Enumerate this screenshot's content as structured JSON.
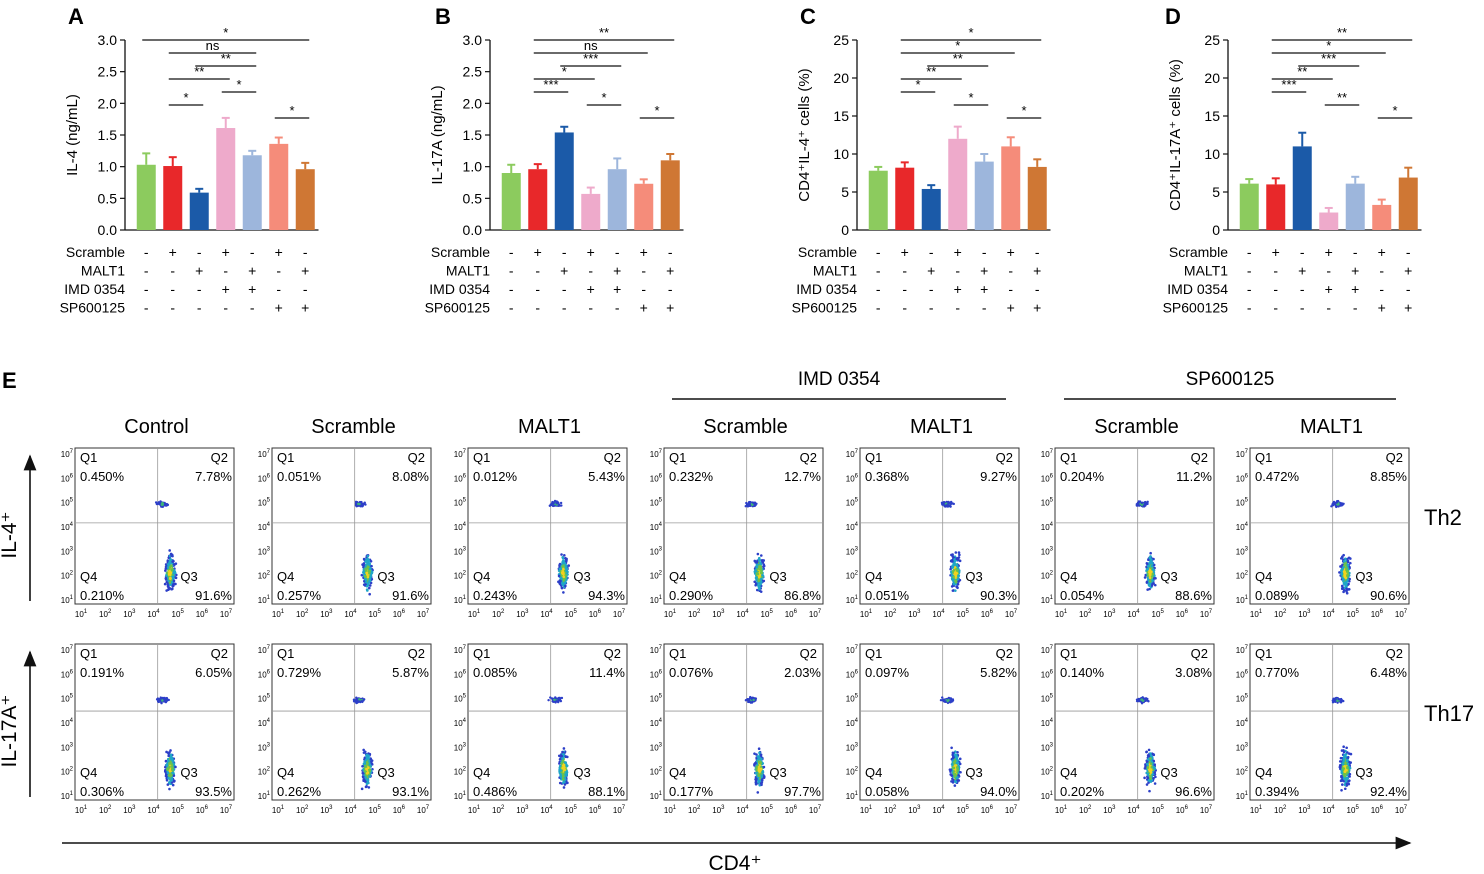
{
  "panel_labels": {
    "a": "A",
    "b": "B",
    "c": "C",
    "d": "D",
    "e": "E"
  },
  "colors": [
    "#8ccb5e",
    "#e8282a",
    "#1b5aa8",
    "#eeaacb",
    "#9db6dc",
    "#f58c7a",
    "#cf7734"
  ],
  "treatment_rows": [
    {
      "label": "Scramble",
      "signs": [
        "-",
        "+",
        "-",
        "+",
        "-",
        "+",
        "-"
      ]
    },
    {
      "label": "MALT1",
      "signs": [
        "-",
        "-",
        "+",
        "-",
        "+",
        "-",
        "+"
      ]
    },
    {
      "label": "IMD 0354",
      "signs": [
        "-",
        "-",
        "-",
        "+",
        "+",
        "-",
        "-"
      ]
    },
    {
      "label": "SP600125",
      "signs": [
        "-",
        "-",
        "-",
        "-",
        "-",
        "+",
        "+"
      ]
    }
  ],
  "chart_data": [
    {
      "type": "bar",
      "panel": "A",
      "ylabel": "IL-4 (ng/mL)",
      "ylim": [
        0,
        3.0
      ],
      "ticks": [
        "0.0",
        "0.5",
        "1.0",
        "1.5",
        "2.0",
        "2.5",
        "3.0"
      ],
      "values": [
        1.03,
        1.01,
        0.59,
        1.61,
        1.18,
        1.36,
        0.96
      ],
      "errors": [
        0.18,
        0.14,
        0.06,
        0.16,
        0.07,
        0.1,
        0.1
      ],
      "sig": [
        {
          "a": 0,
          "b": 6,
          "label": "*",
          "level": 0
        },
        {
          "a": 1,
          "b": 4,
          "label": "ns",
          "level": 1
        },
        {
          "a": 2,
          "b": 4,
          "label": "**",
          "level": 2
        },
        {
          "a": 1,
          "b": 3,
          "label": "**",
          "level": 3
        },
        {
          "a": 3,
          "b": 4,
          "label": "*",
          "level": 4
        },
        {
          "a": 1,
          "b": 2,
          "label": "*",
          "level": 5
        },
        {
          "a": 5,
          "b": 6,
          "label": "*",
          "level": 6
        }
      ]
    },
    {
      "type": "bar",
      "panel": "B",
      "ylabel": "IL-17A (ng/mL)",
      "ylim": [
        0,
        3.0
      ],
      "ticks": [
        "0.0",
        "0.5",
        "1.0",
        "1.5",
        "2.0",
        "2.5",
        "3.0"
      ],
      "values": [
        0.9,
        0.96,
        1.54,
        0.57,
        0.96,
        0.73,
        1.1
      ],
      "errors": [
        0.13,
        0.08,
        0.09,
        0.1,
        0.17,
        0.07,
        0.1
      ],
      "sig": [
        {
          "a": 1,
          "b": 6,
          "label": "**",
          "level": 0
        },
        {
          "a": 1,
          "b": 5,
          "label": "ns",
          "level": 1
        },
        {
          "a": 2,
          "b": 4,
          "label": "***",
          "level": 2
        },
        {
          "a": 1,
          "b": 3,
          "label": "*",
          "level": 3
        },
        {
          "a": 1,
          "b": 2,
          "label": "***",
          "level": 4
        },
        {
          "a": 3,
          "b": 4,
          "label": "*",
          "level": 5
        },
        {
          "a": 5,
          "b": 6,
          "label": "*",
          "level": 6
        }
      ]
    },
    {
      "type": "bar",
      "panel": "C",
      "ylabel": "CD4⁺IL-4⁺ cells  (%)",
      "ylim": [
        0,
        25
      ],
      "ticks": [
        "0",
        "5",
        "10",
        "15",
        "20",
        "25"
      ],
      "values": [
        7.8,
        8.2,
        5.4,
        12.0,
        9.0,
        11.0,
        8.3
      ],
      "errors": [
        0.5,
        0.7,
        0.5,
        1.6,
        1.0,
        1.2,
        1.0
      ],
      "sig": [
        {
          "a": 1,
          "b": 6,
          "label": "*",
          "level": 0
        },
        {
          "a": 1,
          "b": 5,
          "label": "*",
          "level": 1
        },
        {
          "a": 2,
          "b": 4,
          "label": "**",
          "level": 2
        },
        {
          "a": 1,
          "b": 3,
          "label": "**",
          "level": 3
        },
        {
          "a": 1,
          "b": 2,
          "label": "*",
          "level": 4
        },
        {
          "a": 3,
          "b": 4,
          "label": "*",
          "level": 5
        },
        {
          "a": 5,
          "b": 6,
          "label": "*",
          "level": 6
        }
      ]
    },
    {
      "type": "bar",
      "panel": "D",
      "ylabel": "CD4⁺IL-17A⁺ cells  (%)",
      "ylim": [
        0,
        25
      ],
      "ticks": [
        "0",
        "5",
        "10",
        "15",
        "20",
        "25"
      ],
      "values": [
        6.1,
        6.0,
        11.0,
        2.3,
        6.1,
        3.3,
        6.9
      ],
      "errors": [
        0.6,
        0.8,
        1.8,
        0.6,
        0.9,
        0.7,
        1.3
      ],
      "sig": [
        {
          "a": 1,
          "b": 6,
          "label": "**",
          "level": 0
        },
        {
          "a": 1,
          "b": 5,
          "label": "*",
          "level": 1
        },
        {
          "a": 2,
          "b": 4,
          "label": "***",
          "level": 2
        },
        {
          "a": 1,
          "b": 3,
          "label": "**",
          "level": 3
        },
        {
          "a": 1,
          "b": 2,
          "label": "***",
          "level": 4
        },
        {
          "a": 3,
          "b": 4,
          "label": "**",
          "level": 5
        },
        {
          "a": 5,
          "b": 6,
          "label": "*",
          "level": 6
        }
      ]
    }
  ],
  "flow": {
    "group_labels": [
      "IMD 0354",
      "SP600125"
    ],
    "columns": [
      "Control",
      "Scramble",
      "MALT1",
      "Scramble",
      "MALT1",
      "Scramble",
      "MALT1"
    ],
    "rows": [
      {
        "y_axis_label": "IL-4⁺",
        "row_label": "Th2",
        "quadrants": [
          {
            "q1": "0.450%",
            "q2": "7.78%",
            "q3": "91.6%",
            "q4": "0.210%"
          },
          {
            "q1": "0.051%",
            "q2": "8.08%",
            "q3": "91.6%",
            "q4": "0.257%"
          },
          {
            "q1": "0.012%",
            "q2": "5.43%",
            "q3": "94.3%",
            "q4": "0.243%"
          },
          {
            "q1": "0.232%",
            "q2": "12.7%",
            "q3": "86.8%",
            "q4": "0.290%"
          },
          {
            "q1": "0.368%",
            "q2": "9.27%",
            "q3": "90.3%",
            "q4": "0.051%"
          },
          {
            "q1": "0.204%",
            "q2": "11.2%",
            "q3": "88.6%",
            "q4": "0.054%"
          },
          {
            "q1": "0.472%",
            "q2": "8.85%",
            "q3": "90.6%",
            "q4": "0.089%"
          }
        ]
      },
      {
        "y_axis_label": "IL-17A⁺",
        "row_label": "Th17",
        "quadrants": [
          {
            "q1": "0.191%",
            "q2": "6.05%",
            "q3": "93.5%",
            "q4": "0.306%"
          },
          {
            "q1": "0.729%",
            "q2": "5.87%",
            "q3": "93.1%",
            "q4": "0.262%"
          },
          {
            "q1": "0.085%",
            "q2": "11.4%",
            "q3": "88.1%",
            "q4": "0.486%"
          },
          {
            "q1": "0.076%",
            "q2": "2.03%",
            "q3": "97.7%",
            "q4": "0.177%"
          },
          {
            "q1": "0.097%",
            "q2": "5.82%",
            "q3": "94.0%",
            "q4": "0.058%"
          },
          {
            "q1": "0.140%",
            "q2": "3.08%",
            "q3": "96.6%",
            "q4": "0.202%"
          },
          {
            "q1": "0.770%",
            "q2": "6.48%",
            "q3": "92.4%",
            "q4": "0.394%"
          }
        ]
      }
    ],
    "quadrant_names": {
      "q1": "Q1",
      "q2": "Q2",
      "q3": "Q3",
      "q4": "Q4"
    },
    "tick_exponents": [
      "1",
      "2",
      "3",
      "4",
      "5",
      "6",
      "7"
    ],
    "tick_base": "10",
    "x_axis_label": "CD4⁺"
  }
}
